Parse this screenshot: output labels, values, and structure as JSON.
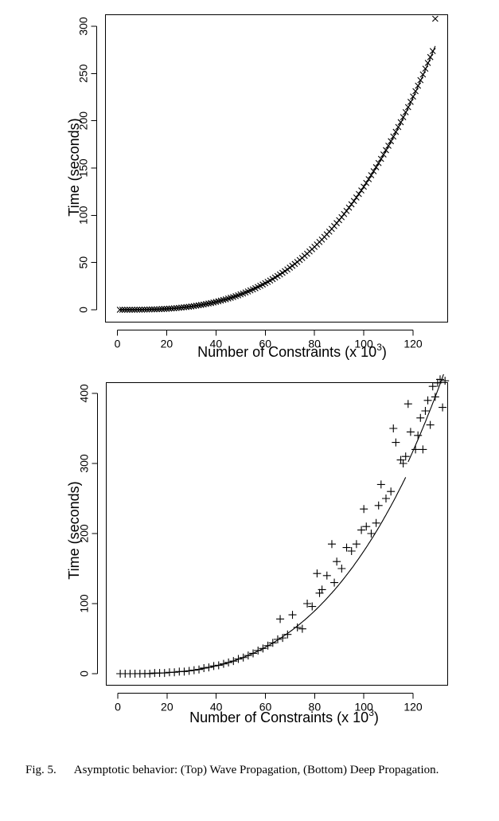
{
  "chart_data": [
    {
      "type": "scatter",
      "marker": "x",
      "xlabel": "Number of Constraints (x 10",
      "xlabel_exp": "3",
      "xlabel_close": ")",
      "ylabel": "Time (seconds)",
      "xlim": [
        0,
        130
      ],
      "ylim": [
        0,
        310
      ],
      "xticks": [
        "0",
        "20",
        "40",
        "60",
        "80",
        "100",
        "120"
      ],
      "yticks": [
        "0",
        "50",
        "100",
        "150",
        "200",
        "250",
        "300"
      ],
      "grid": false,
      "fit": {
        "type": "cubic",
        "a": 0.00013,
        "x_range": [
          1,
          129
        ]
      },
      "series": [
        {
          "x": [
            1,
            2,
            3,
            4,
            5,
            6,
            7,
            8,
            9,
            10,
            11,
            12,
            13,
            14,
            15,
            16,
            17,
            18,
            19,
            20,
            21,
            22,
            23,
            24,
            25,
            26,
            27,
            28,
            29,
            30,
            31,
            32,
            33,
            34,
            35,
            36,
            37,
            38,
            39,
            40,
            41,
            42,
            43,
            44,
            45,
            46,
            47,
            48,
            49,
            50,
            51,
            52,
            53,
            54,
            55,
            56,
            57,
            58,
            59,
            60,
            61,
            62,
            63,
            64,
            65,
            66,
            67,
            68,
            69,
            70,
            71,
            72,
            73,
            74,
            75,
            76,
            77,
            78,
            79,
            80,
            81,
            82,
            83,
            84,
            85,
            86,
            87,
            88,
            89,
            90,
            91,
            92,
            93,
            94,
            95,
            96,
            97,
            98,
            99,
            100,
            101,
            102,
            103,
            104,
            105,
            106,
            107,
            108,
            109,
            110,
            111,
            112,
            113,
            114,
            115,
            116,
            117,
            118,
            119,
            120,
            121,
            122,
            123,
            124,
            125,
            126,
            127,
            128,
            129
          ],
          "y": [
            0,
            0,
            0,
            0,
            0,
            0,
            0,
            0.1,
            0.1,
            0.1,
            0.2,
            0.2,
            0.3,
            0.4,
            0.4,
            0.5,
            0.6,
            0.8,
            0.9,
            1,
            1.2,
            1.4,
            1.6,
            1.8,
            2,
            2.3,
            2.6,
            2.9,
            3.2,
            3.5,
            3.9,
            4.3,
            4.7,
            5.1,
            5.6,
            6.1,
            6.6,
            7.1,
            7.7,
            8.3,
            9,
            9.7,
            10.4,
            11.1,
            11.9,
            12.7,
            13.5,
            14.4,
            15.3,
            16.3,
            17.2,
            18.3,
            19.4,
            20.5,
            21.6,
            22.8,
            24.1,
            25.4,
            26.7,
            28.1,
            29.5,
            31,
            32.5,
            34.1,
            35.7,
            37.4,
            39.1,
            40.9,
            42.7,
            44.6,
            46.5,
            48.5,
            50.6,
            52.7,
            54.8,
            57.1,
            59.3,
            61.7,
            64.1,
            66.6,
            69.1,
            71.7,
            74.3,
            77.1,
            79.8,
            82.7,
            85.6,
            88.6,
            91.7,
            94.8,
            98,
            101.3,
            104.6,
            108.1,
            111.6,
            115.1,
            118.8,
            122.5,
            126.3,
            130.2,
            134.2,
            138.2,
            142.4,
            146.6,
            150.9,
            155.3,
            159.7,
            164.3,
            168.9,
            173.6,
            178.4,
            183.3,
            188.3,
            193.4,
            198.5,
            203.8,
            209.1,
            214.5,
            220,
            225.6,
            231.3,
            237.1,
            243,
            249,
            255.1,
            261.2,
            267.4,
            273.8,
            308
          ]
        }
      ]
    },
    {
      "type": "scatter",
      "marker": "+",
      "xlabel": "Number of Constraints (x 10",
      "xlabel_exp": "3",
      "xlabel_close": ")",
      "ylabel": "Time (seconds)",
      "xlim": [
        0,
        135
      ],
      "ylim": [
        0,
        430
      ],
      "xticks": [
        "0",
        "20",
        "40",
        "60",
        "80",
        "100",
        "120"
      ],
      "yticks": [
        "0",
        "100",
        "200",
        "300",
        "400"
      ],
      "grid": false,
      "fit": {
        "type": "piecewise-cubic",
        "segments": [
          {
            "a": 0.000175,
            "x_range": [
              1,
              117
            ]
          },
          {
            "a": 0.000184,
            "x_range": [
              118,
              133
            ]
          }
        ]
      },
      "series": [
        {
          "x": [
            1,
            3,
            5,
            7,
            9,
            11,
            13,
            15,
            17,
            19,
            21,
            23,
            25,
            27,
            29,
            31,
            33,
            35,
            37,
            39,
            41,
            43,
            45,
            47,
            49,
            51,
            53,
            55,
            57,
            59,
            61,
            63,
            65,
            66,
            67,
            69,
            71,
            73,
            75,
            77,
            79,
            81,
            82,
            83,
            85,
            87,
            88,
            89,
            91,
            93,
            95,
            97,
            99,
            100,
            101,
            103,
            105,
            106,
            107,
            109,
            111,
            112,
            113,
            115,
            116,
            117,
            118,
            119,
            121,
            122,
            123,
            124,
            125,
            126,
            127,
            128,
            129,
            130,
            131,
            132,
            133
          ],
          "y": [
            0,
            0,
            0,
            0,
            0,
            0,
            0,
            1,
            1,
            1,
            2,
            2,
            3,
            3,
            4,
            5,
            6,
            8,
            9,
            11,
            12,
            14,
            16,
            18,
            21,
            23,
            26,
            29,
            33,
            36,
            40,
            44,
            49,
            78,
            51,
            56,
            84,
            66,
            64,
            100,
            96,
            143,
            115,
            120,
            140,
            185,
            130,
            160,
            150,
            180,
            175,
            185,
            205,
            235,
            210,
            200,
            215,
            240,
            270,
            250,
            260,
            350,
            330,
            305,
            300,
            310,
            385,
            345,
            320,
            340,
            365,
            320,
            375,
            390,
            355,
            410,
            395,
            415,
            420,
            380,
            418
          ]
        }
      ]
    }
  ],
  "caption": {
    "label": "Fig. 5.",
    "text": "Asymptotic behavior: (Top) Wave Propagation, (Bottom) Deep Propagation."
  }
}
